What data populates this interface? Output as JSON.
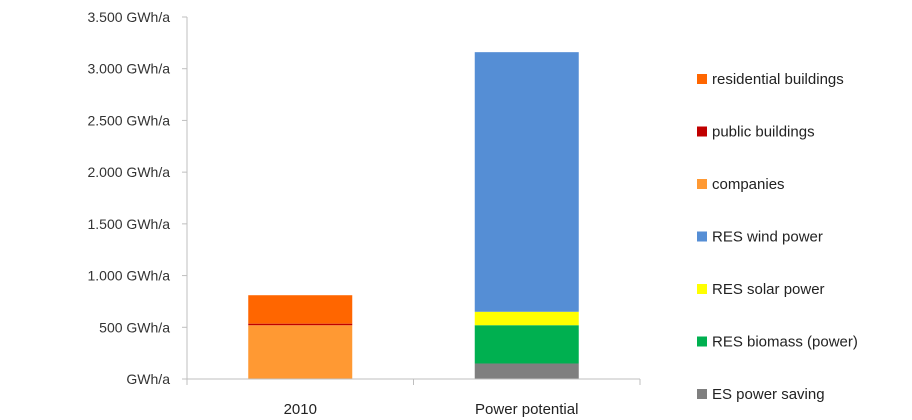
{
  "chart_data": {
    "type": "bar",
    "stacked": true,
    "categories": [
      "2010",
      "Power potential"
    ],
    "y_ticks": [
      {
        "value": 3500,
        "label": "3.500  GWh/a"
      },
      {
        "value": 3000,
        "label": "3.000  GWh/a"
      },
      {
        "value": 2500,
        "label": "2.500  GWh/a"
      },
      {
        "value": 2000,
        "label": "2.000  GWh/a"
      },
      {
        "value": 1500,
        "label": "1.500  GWh/a"
      },
      {
        "value": 1000,
        "label": "1.000  GWh/a"
      },
      {
        "value": 500,
        "label": "500  GWh/a"
      },
      {
        "value": 0,
        "label": "GWh/a"
      }
    ],
    "ylim": [
      0,
      3500
    ],
    "grid": false,
    "legend_position": "right",
    "series": [
      {
        "name": "ES power saving",
        "color": "#7f7f7f",
        "values": [
          0,
          150
        ]
      },
      {
        "name": "RES biomass (power)",
        "color": "#00b050",
        "values": [
          0,
          370
        ]
      },
      {
        "name": "RES solar power",
        "color": "#ffff00",
        "values": [
          0,
          130
        ]
      },
      {
        "name": "RES wind power",
        "color": "#558ed5",
        "values": [
          0,
          2510
        ]
      },
      {
        "name": "companies",
        "color": "#ff9933",
        "values": [
          520,
          0
        ]
      },
      {
        "name": "public buildings",
        "color": "#c00000",
        "values": [
          15,
          0
        ]
      },
      {
        "name": "residential buildings",
        "color": "#ff6600",
        "values": [
          275,
          0
        ]
      }
    ],
    "legend_order": [
      "residential buildings",
      "public buildings",
      "companies",
      "RES wind power",
      "RES solar power",
      "RES biomass (power)",
      "ES power saving"
    ]
  }
}
